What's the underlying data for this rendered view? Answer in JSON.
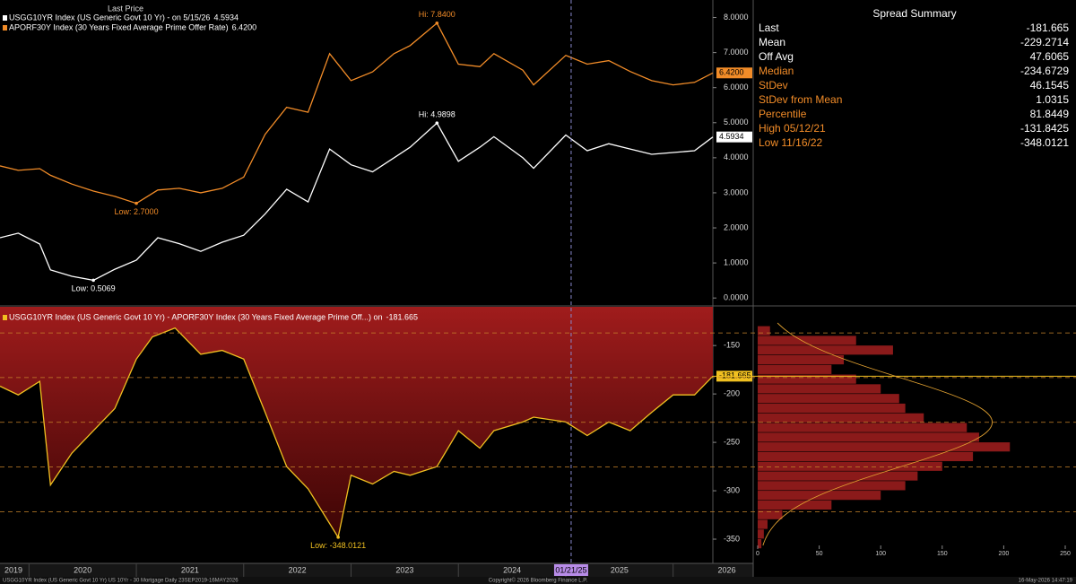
{
  "chart_data": [
    {
      "type": "line",
      "title": "Last Price",
      "x": [
        2019.73,
        2019.9,
        2020.1,
        2020.2,
        2020.4,
        2020.6,
        2020.8,
        2021.0,
        2021.2,
        2021.4,
        2021.6,
        2021.8,
        2022.0,
        2022.2,
        2022.4,
        2022.6,
        2022.8,
        2023.0,
        2023.2,
        2023.4,
        2023.55,
        2023.8,
        2024.0,
        2024.2,
        2024.33,
        2024.6,
        2024.7,
        2025.0,
        2025.2,
        2025.4,
        2025.6,
        2025.8,
        2026.0,
        2026.2,
        2026.37
      ],
      "xlim": [
        2019.73,
        2026.37
      ],
      "ylim": [
        -0.2,
        8.5
      ],
      "yticks": [
        {
          "value": 0,
          "label": "0.0000"
        },
        {
          "value": 1,
          "label": "1.0000"
        },
        {
          "value": 2,
          "label": "2.0000"
        },
        {
          "value": 3,
          "label": "3.0000"
        },
        {
          "value": 4,
          "label": "4.0000"
        },
        {
          "value": 5,
          "label": "5.0000"
        },
        {
          "value": 6,
          "label": "6.0000"
        },
        {
          "value": 7,
          "label": "7.0000"
        },
        {
          "value": 8,
          "label": "8.0000"
        }
      ],
      "series": [
        {
          "name": "USGG10YR Index (US Generic Govt 10 Yr) - on 5/15/26",
          "color": "#ffffff",
          "values": [
            1.72,
            1.85,
            1.54,
            0.8,
            0.62,
            0.5069,
            0.82,
            1.08,
            1.72,
            1.55,
            1.33,
            1.59,
            1.79,
            2.4,
            3.1,
            2.74,
            4.25,
            3.8,
            3.6,
            4.0,
            4.3,
            4.9898,
            3.9,
            4.3,
            4.6,
            4.0,
            3.7,
            4.65,
            4.2,
            4.4,
            4.25,
            4.1,
            4.15,
            4.2,
            4.5934
          ]
        },
        {
          "name": "APORF30Y Index (30 Years Fixed Average Prime Offer Rate)",
          "color": "#f28c28",
          "values": [
            3.77,
            3.64,
            3.69,
            3.5,
            3.25,
            3.05,
            2.9,
            2.7,
            3.08,
            3.13,
            3.0,
            3.13,
            3.45,
            4.67,
            5.44,
            5.3,
            6.97,
            6.2,
            6.45,
            6.97,
            7.2,
            7.84,
            6.67,
            6.6,
            6.97,
            6.5,
            6.08,
            6.92,
            6.67,
            6.77,
            6.46,
            6.2,
            6.08,
            6.15,
            6.42
          ],
          "value_labels": [
            null,
            null,
            null,
            null,
            null,
            null,
            null,
            null,
            null,
            null,
            null,
            null,
            null,
            null,
            null,
            null,
            null,
            null,
            null,
            null,
            null,
            null,
            null,
            null,
            null,
            null,
            null,
            null,
            null,
            null,
            null,
            null,
            null,
            null,
            "6.4200"
          ]
        }
      ],
      "annotations": [
        {
          "label": "Hi: 4.9898",
          "x": 2023.8,
          "y": 4.9898,
          "color": "#ffffff"
        },
        {
          "label": "Low: 0.5069",
          "x": 2020.6,
          "y": 0.5069,
          "color": "#ffffff"
        },
        {
          "label": "Hi: 7.8400",
          "x": 2023.8,
          "y": 7.84,
          "color": "#f28c28"
        },
        {
          "label": "Low: 2.7000",
          "x": 2021.0,
          "y": 2.7,
          "color": "#f28c28"
        }
      ]
    },
    {
      "type": "area",
      "x": [
        2019.73,
        2019.9,
        2020.1,
        2020.2,
        2020.4,
        2020.6,
        2020.8,
        2021.0,
        2021.15,
        2021.36,
        2021.6,
        2021.8,
        2022.0,
        2022.2,
        2022.4,
        2022.6,
        2022.88,
        2023.0,
        2023.2,
        2023.4,
        2023.55,
        2023.8,
        2024.0,
        2024.2,
        2024.33,
        2024.6,
        2024.7,
        2025.0,
        2025.2,
        2025.4,
        2025.6,
        2025.8,
        2026.0,
        2026.2,
        2026.37
      ],
      "xlim": [
        2019.73,
        2026.37
      ],
      "xticks": [
        2019,
        2020,
        2021,
        2022,
        2023,
        2024,
        2025,
        2026
      ],
      "ylim": [
        -375,
        -110
      ],
      "yticks": [
        -150,
        -200,
        -250,
        -300,
        -350
      ],
      "series": [
        {
          "name": "USGG10YR Index (US Generic Govt 10 Yr) - APORF30Y Index (30 Years Fixed Average Prime Off...) on",
          "color": "#f0c020",
          "values": [
            -192,
            -201,
            -187,
            -294,
            -261,
            -238,
            -215,
            -164,
            -141,
            -131.8425,
            -159,
            -155,
            -164,
            -219,
            -275,
            -298,
            -348.0121,
            -284,
            -293,
            -280,
            -284,
            -275,
            -238,
            -256,
            -238,
            -229,
            -224,
            -229,
            -243,
            -229,
            -238,
            -219,
            -201,
            -201,
            -181.665
          ]
        }
      ],
      "annotations": [
        {
          "label": "Low: -348.0121",
          "x": 2022.88,
          "y": -348.0121,
          "color": "#f0c020"
        }
      ],
      "cursor": {
        "label": "01/21/25",
        "x": 2025.05
      }
    },
    {
      "type": "histogram",
      "color": "#8b1a1a",
      "bins": [
        -360,
        -350,
        -340,
        -330,
        -320,
        -310,
        -300,
        -290,
        -280,
        -270,
        -260,
        -250,
        -240,
        -230,
        -220,
        -210,
        -200,
        -190,
        -180,
        -170,
        -160,
        -150,
        -140,
        -130
      ],
      "values": [
        3,
        5,
        8,
        20,
        60,
        100,
        120,
        130,
        150,
        175,
        205,
        180,
        170,
        135,
        120,
        115,
        100,
        80,
        60,
        70,
        110,
        80,
        10
      ],
      "xlim": [
        0,
        250
      ],
      "xticks": [
        0,
        50,
        100,
        150,
        200,
        250
      ]
    }
  ],
  "summary": {
    "title": "Spread Summary",
    "rows": [
      {
        "label": "Last",
        "value": -181.665,
        "color": "#ffffff"
      },
      {
        "label": "Mean",
        "value": -229.2714,
        "color": "#ffffff"
      },
      {
        "label": "Off Avg",
        "value": 47.6065,
        "color": "#ffffff"
      },
      {
        "label": "Median",
        "value": -234.6729,
        "color": "#f28c28"
      },
      {
        "label": "StDev",
        "value": 46.1545,
        "color": "#f28c28"
      },
      {
        "label": "StDev from Mean",
        "value": 1.0315,
        "color": "#f28c28"
      },
      {
        "label": "Percentile",
        "value": 81.8449,
        "color": "#f28c28"
      },
      {
        "label": "High 05/12/21",
        "value": -131.8425,
        "color": "#f28c28"
      },
      {
        "label": "Low 11/16/22",
        "value": -348.0121,
        "color": "#f28c28"
      }
    ]
  },
  "footer": {
    "left": "USGG10YR Index (US Generic Govt 10 Yr) US 10Yr - 30 Mortgage Daily 23SEP2019-16MAY2026",
    "center": "Copyright© 2026 Bloomberg Finance L.P.",
    "right": "16-May-2026 14:47:19"
  }
}
